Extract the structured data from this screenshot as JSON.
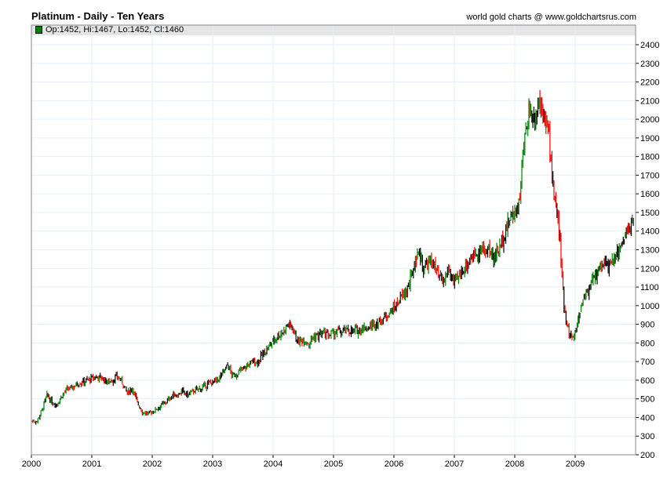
{
  "chart_data": {
    "type": "ohlc",
    "title": "Platinum - Daily - Ten Years",
    "credit": "world gold charts @ www.goldchartsrus.com",
    "legend": "Op:1452, Hi:1467, Lo:1452, Cl:1460",
    "xlabel": "",
    "ylabel": "",
    "ylim": [
      200,
      2400
    ],
    "xlim": [
      2000,
      2010
    ],
    "yticks": [
      200,
      300,
      400,
      500,
      600,
      700,
      800,
      900,
      1000,
      1100,
      1200,
      1300,
      1400,
      1500,
      1600,
      1700,
      1800,
      1900,
      2000,
      2100,
      2200,
      2300,
      2400
    ],
    "xticks": [
      "2000",
      "2001",
      "2002",
      "2003",
      "2004",
      "2005",
      "2006",
      "2007",
      "2008",
      "2009"
    ],
    "up_color": "#008000",
    "down_color": "#ff0000",
    "grid_color": "#e3f0fa",
    "monthly_close_approx": [
      380,
      440,
      520,
      480,
      470,
      520,
      550,
      560,
      580,
      590,
      600,
      610,
      620,
      610,
      590,
      600,
      620,
      590,
      530,
      560,
      480,
      430,
      420,
      430,
      450,
      470,
      490,
      520,
      520,
      540,
      520,
      540,
      550,
      560,
      580,
      590,
      600,
      640,
      680,
      620,
      640,
      660,
      680,
      700,
      700,
      740,
      770,
      810,
      840,
      860,
      900,
      880,
      800,
      820,
      800,
      830,
      840,
      850,
      840,
      850,
      860,
      860,
      870,
      860,
      870,
      880,
      880,
      900,
      910,
      930,
      960,
      980,
      1020,
      1060,
      1100,
      1200,
      1300,
      1200,
      1230,
      1230,
      1150,
      1120,
      1200,
      1120,
      1150,
      1200,
      1240,
      1270,
      1300,
      1290,
      1300,
      1260,
      1300,
      1380,
      1450,
      1500,
      1540,
      1850,
      2050,
      2000,
      2100,
      2050,
      1900,
      1600,
      1400,
      1000,
      850,
      820,
      960,
      1050,
      1100,
      1150,
      1200,
      1240,
      1200,
      1250,
      1300,
      1350,
      1420,
      1450
    ]
  }
}
